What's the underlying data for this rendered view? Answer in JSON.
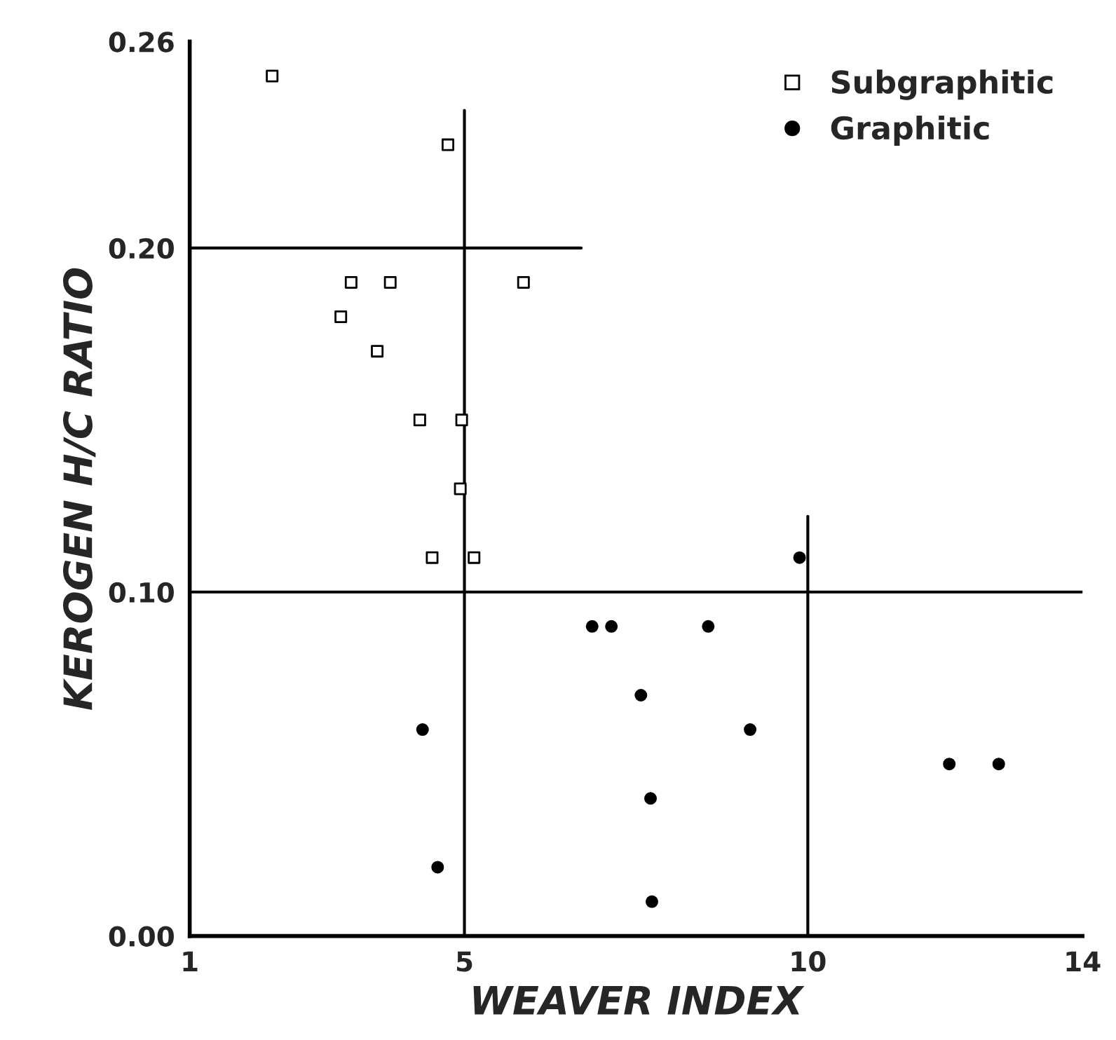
{
  "chart_data": {
    "type": "scatter",
    "xlabel": "WEAVER INDEX",
    "ylabel": "KEROGEN H/C RATIO",
    "xlim": [
      1,
      14
    ],
    "xticks": [
      1,
      5,
      10,
      14
    ],
    "ylim": [
      0,
      0.26
    ],
    "yticks": [
      {
        "value": 0,
        "label": "0.00"
      },
      {
        "value": 0.1,
        "label": "0.10"
      },
      {
        "value": 0.2,
        "label": "0.20"
      },
      {
        "value": 0.26,
        "label": "0.26"
      }
    ],
    "legend": "top right",
    "grid": false,
    "series": [
      {
        "name": "Subgraphitic",
        "color": "#000000",
        "marker": "square",
        "x": [
          2.2,
          4.76,
          3.2,
          3.35,
          3.92,
          5.86,
          3.73,
          4.35,
          4.96,
          4.94,
          4.53,
          5.14
        ],
        "values": [
          0.25,
          0.23,
          0.18,
          0.19,
          0.19,
          0.19,
          0.17,
          0.15,
          0.15,
          0.13,
          0.11,
          0.11
        ]
      },
      {
        "name": "Graphitic",
        "color": "#000000",
        "marker": "circle",
        "x": [
          9.88,
          6.86,
          7.14,
          8.55,
          7.57,
          9.16,
          4.39,
          7.71,
          12.06,
          12.78,
          4.61,
          7.73
        ],
        "values": [
          0.11,
          0.09,
          0.09,
          0.09,
          0.07,
          0.06,
          0.06,
          0.04,
          0.05,
          0.05,
          0.02,
          0.01
        ]
      },
      {
        "type": "line",
        "color": "#000000",
        "x": [
          1,
          6.7
        ],
        "values": [
          0.2,
          0.2
        ]
      },
      {
        "type": "line",
        "color": "#000000",
        "x": [
          1,
          14
        ],
        "values": [
          0.1,
          0.1
        ]
      },
      {
        "type": "line",
        "color": "#000000",
        "x": [
          5,
          5
        ],
        "values": [
          0,
          0.24
        ]
      },
      {
        "type": "line",
        "color": "#000000",
        "x": [
          10,
          10
        ],
        "values": [
          0,
          0.122
        ]
      }
    ]
  }
}
